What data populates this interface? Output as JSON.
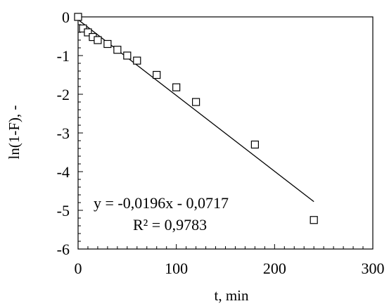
{
  "chart_data": {
    "type": "scatter",
    "title": "",
    "xlabel": "t, min",
    "ylabel": "ln(1-F), -",
    "xlim": [
      0,
      300
    ],
    "ylim": [
      -6,
      0
    ],
    "x_ticks": [
      0,
      100,
      200,
      300
    ],
    "y_ticks": [
      0,
      -1,
      -2,
      -3,
      -4,
      -5,
      -6
    ],
    "x_tick_labels": [
      "0",
      "100",
      "200",
      "300"
    ],
    "y_tick_labels": [
      "0",
      "-1",
      "-2",
      "-3",
      "-4",
      "-5",
      "-6"
    ],
    "grid": false,
    "marker": "open-square",
    "points": [
      {
        "x": 0,
        "y": 0.0
      },
      {
        "x": 5,
        "y": -0.3
      },
      {
        "x": 10,
        "y": -0.4
      },
      {
        "x": 15,
        "y": -0.52
      },
      {
        "x": 20,
        "y": -0.6
      },
      {
        "x": 30,
        "y": -0.7
      },
      {
        "x": 40,
        "y": -0.85
      },
      {
        "x": 50,
        "y": -1.0
      },
      {
        "x": 60,
        "y": -1.13
      },
      {
        "x": 80,
        "y": -1.5
      },
      {
        "x": 100,
        "y": -1.82
      },
      {
        "x": 120,
        "y": -2.2
      },
      {
        "x": 180,
        "y": -3.3
      },
      {
        "x": 240,
        "y": -5.25
      }
    ],
    "trendline": {
      "type": "linear",
      "slope": -0.0196,
      "intercept": -0.0717,
      "x_range": [
        0,
        240
      ],
      "equation": "y = -0,0196x - 0,0717",
      "r_squared": "R² = 0,9783"
    }
  }
}
